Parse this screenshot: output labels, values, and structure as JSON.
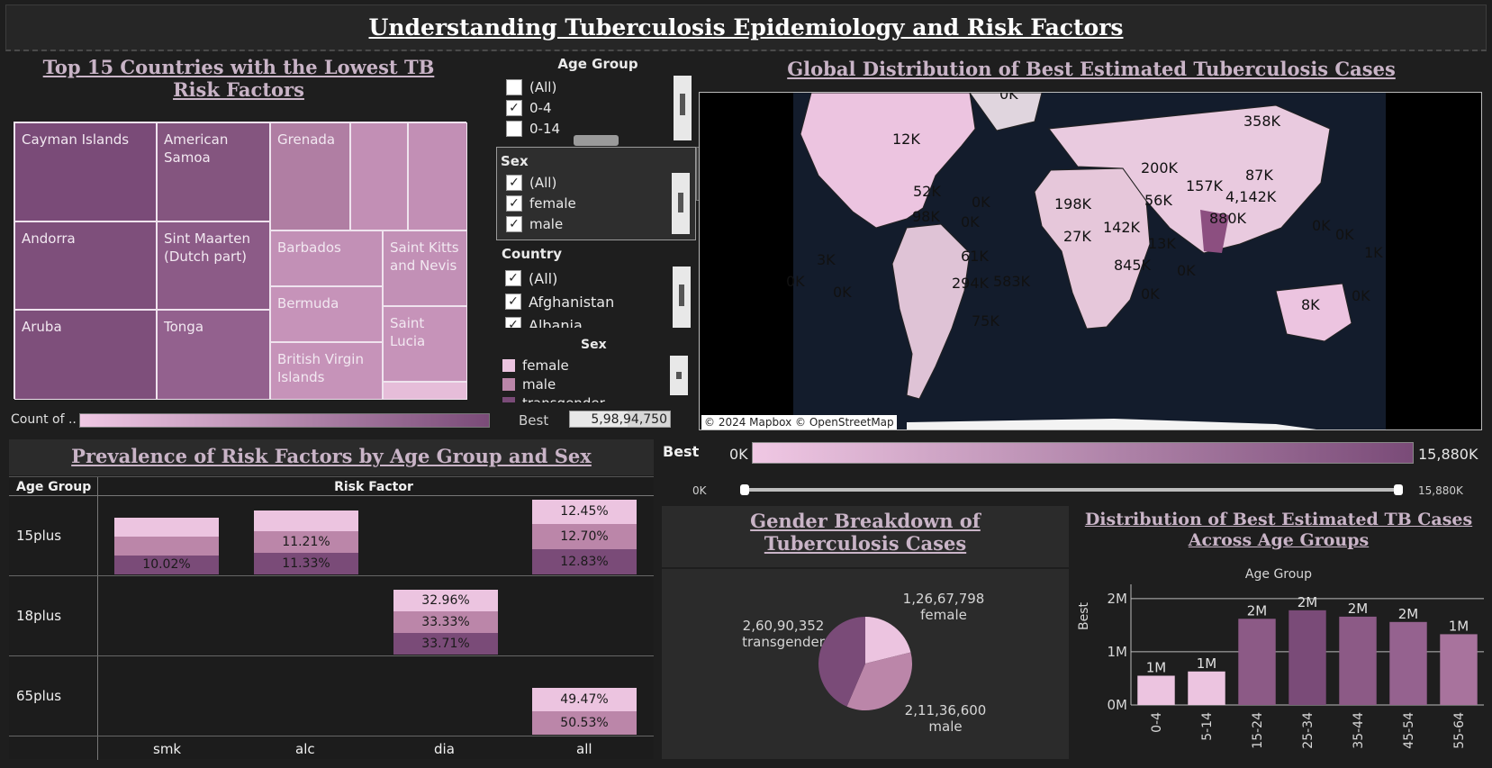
{
  "dashboard": {
    "title": "Understanding Tuberculosis Epidemiology and Risk Factors"
  },
  "treemap": {
    "title": "Top 15 Countries with the Lowest TB Risk Factors",
    "cells": [
      "Cayman Islands",
      "American Samoa",
      "Grenada",
      "Andorra",
      "Sint Maarten (Dutch part)",
      "Barbados",
      "Saint Kitts and Nevis",
      "Bermuda",
      "Aruba",
      "Tonga",
      "Saint Lucia",
      "British Virgin Islands"
    ],
    "legend_label": "Count of .."
  },
  "filters": {
    "age_group": {
      "title": "Age Group",
      "items": [
        "(All)",
        "0-4",
        "0-14"
      ]
    },
    "sex": {
      "title": "Sex",
      "items": [
        "(All)",
        "female",
        "male"
      ]
    },
    "country": {
      "title": "Country",
      "items": [
        "(All)",
        "Afghanistan",
        "Albania"
      ]
    },
    "sex_legend": {
      "title": "Sex",
      "items": [
        "female",
        "male",
        "transgender"
      ],
      "colors": [
        "#ecc4e0",
        "#bb86a9",
        "#7a4b78"
      ]
    },
    "best_label": "Best",
    "best_value": "5,98,94,750"
  },
  "map": {
    "title": "Global Distribution of Best Estimated Tuberculosis Cases",
    "attribution": "© 2024 Mapbox © OpenStreetMap",
    "labels": [
      "0K",
      "12K",
      "358K",
      "52K",
      "200K",
      "87K",
      "157K",
      "4,142K",
      "0K",
      "198K",
      "56K",
      "98K",
      "0K",
      "880K",
      "142K",
      "27K",
      "3K",
      "13K",
      "61K",
      "845K",
      "1K",
      "0K",
      "0K",
      "294K",
      "583K",
      "0K",
      "0K",
      "8K",
      "0K",
      "75K",
      "0K",
      "0K"
    ],
    "legend": {
      "title": "Best",
      "min": "0K",
      "max": "15,880K"
    },
    "slider": {
      "min": "0K",
      "max": "15,880K"
    }
  },
  "prevalence": {
    "title": "Prevalence of Risk Factors by Age Group and Sex",
    "row_header": "Age Group",
    "col_header": "Risk Factor",
    "rows": [
      "15plus",
      "18plus",
      "65plus"
    ],
    "columns": [
      "smk",
      "alc",
      "dia",
      "all"
    ],
    "labels": {
      "smk_15_male": "10.02%",
      "alc_15_female": "11.21%",
      "alc_15_male": "11.33%",
      "all_15_top": "12.45%",
      "all_15_mid": "12.70%",
      "all_15_bot": "12.83%",
      "dia_18_top": "32.96%",
      "dia_18_mid": "33.33%",
      "dia_18_bot": "33.71%",
      "all_65_top": "49.47%",
      "all_65_bot": "50.53%"
    }
  },
  "gender": {
    "title": "Gender Breakdown of Tuberculosis Cases",
    "slices": [
      {
        "name": "female",
        "value": 12667798,
        "label": "1,26,67,798",
        "color": "#ecc4e0"
      },
      {
        "name": "male",
        "value": 21136600,
        "label": "2,11,36,600",
        "color": "#bb86a9"
      },
      {
        "name": "transgender",
        "value": 26090352,
        "label": "2,60,90,352",
        "color": "#7a4b78"
      }
    ]
  },
  "chart_data": {
    "type": "bar",
    "title": "Distribution of Best Estimated TB Cases Across Age Groups",
    "xlabel": "Age Group",
    "ylabel": "Best",
    "categories": [
      "0-4",
      "5-14",
      "15-24",
      "25-34",
      "35-44",
      "45-54",
      "55-64"
    ],
    "values": [
      0.55,
      0.63,
      1.62,
      1.78,
      1.66,
      1.56,
      1.33
    ],
    "value_labels": [
      "1M",
      "1M",
      "2M",
      "2M",
      "2M",
      "2M",
      "1M"
    ],
    "yticks": [
      "0M",
      "1M",
      "2M"
    ],
    "ylim": [
      0,
      2.2
    ],
    "colors": [
      "#ecc4e0",
      "#ecc4e0",
      "#8c5a86",
      "#7a4b78",
      "#8c5a86",
      "#95628f",
      "#a8739d"
    ]
  }
}
